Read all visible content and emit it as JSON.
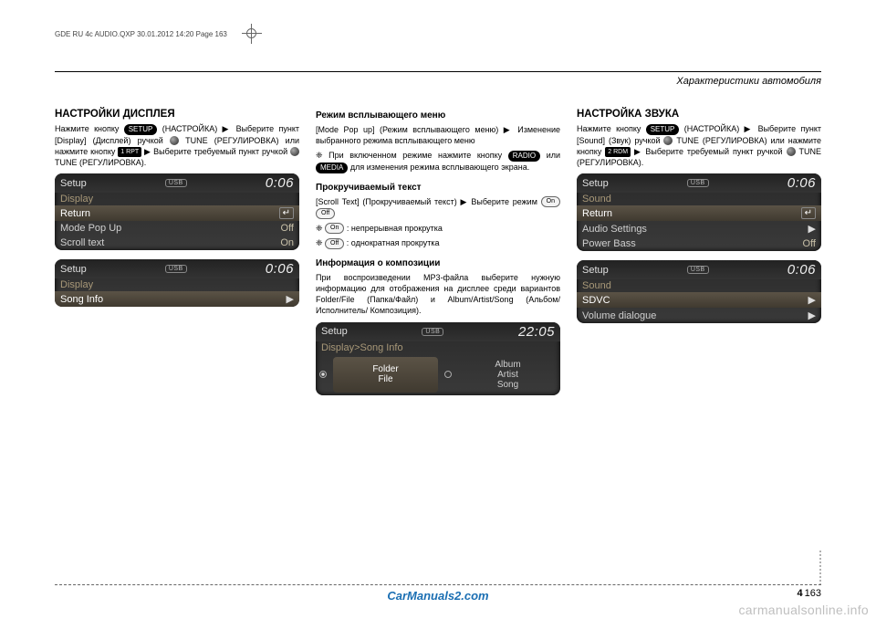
{
  "print_header": "GDE RU 4c AUDIO.QXP  30.01.2012  14:20  Page 163",
  "page_header": "Характеристики автомобиля",
  "buttons": {
    "setup": "SETUP",
    "radio": "RADIO",
    "media": "MEDIA",
    "rpt": "1 RPT",
    "rdm": "2 RDM",
    "on": "On",
    "off": "Off"
  },
  "col1": {
    "h2": "НАСТРОЙКИ ДИСПЛЕЯ",
    "p1a": "Нажмите кнопку ",
    "p1b": " (НАСТРОЙКА) ▶ Выберите пункт [Display] (Дисплей) ручкой ",
    "p1c": " TUNE (РЕГУЛИРОВКА) или нажмите кнопку ",
    "p1d": " ▶ Выберите требуемый пункт ручкой ",
    "p1e": " TUNE (РЕГУЛИРОВКА).",
    "screen1": {
      "title": "Setup",
      "usb": "USB",
      "time": "0:06",
      "subtitle": "Display",
      "rows": [
        {
          "label": "Return",
          "val": "↵",
          "hl": true
        },
        {
          "label": "Mode Pop Up",
          "val": "Off",
          "hl": false
        },
        {
          "label": "Scroll text",
          "val": "On",
          "hl": false
        }
      ]
    },
    "screen2": {
      "title": "Setup",
      "usb": "USB",
      "time": "0:06",
      "subtitle": "Display",
      "rows": [
        {
          "label": "Song Info",
          "val": "▶",
          "hl": true
        }
      ]
    }
  },
  "col2": {
    "h3a": "Режим всплывающего меню",
    "p_a": "[Mode Pop up] (Режим всплывающего меню) ▶ Изменение выбранного режима всплывающего меню",
    "p_b1": "При включенном режиме нажмите кнопку ",
    "p_b2": " или ",
    "p_b3": " для изменения режима всплывающего экрана.",
    "h3b": "Прокручиваемый текст",
    "p_c": "[Scroll Text] (Прокручиваемый текст) ▶ Выберите режим ",
    "p_d": " : непрерывная прокрутка",
    "p_e": " : однократная прокрутка",
    "h3c": "Информация о композиции",
    "p_f": "При воспроизведении MP3-файла выберите нужную информацию для отображения на дисплее среди вариантов Folder/File (Папка/Файл) и Album/Artist/Song (Альбом/Исполнитель/ Композиция).",
    "screen3": {
      "title": "Setup",
      "usb": "USB",
      "time": "22:05",
      "subtitle": "Display>Song Info",
      "left": "Folder\nFile",
      "right": "Album\nArtist\nSong"
    }
  },
  "col3": {
    "h2": "НАСТРОЙКА ЗВУКА",
    "p1a": "Нажмите кнопку ",
    "p1b": " (НАСТРОЙКА) ▶ Выберите пункт [Sound] (Звук) ручкой ",
    "p1c": " TUNE (РЕГУЛИРОВКА) или нажмите кнопку ",
    "p1d": " ▶ Выберите требуемый пункт ручкой ",
    "p1e": " TUNE (РЕГУЛИРОВКА).",
    "screen4": {
      "title": "Setup",
      "usb": "USB",
      "time": "0:06",
      "subtitle": "Sound",
      "rows": [
        {
          "label": "Return",
          "val": "↵",
          "hl": true
        },
        {
          "label": "Audio Settings",
          "val": "▶",
          "hl": false
        },
        {
          "label": "Power Bass",
          "val": "Off",
          "hl": false
        }
      ]
    },
    "screen5": {
      "title": "Setup",
      "usb": "USB",
      "time": "0:06",
      "subtitle": "Sound",
      "rows": [
        {
          "label": "SDVC",
          "val": "▶",
          "hl": true
        },
        {
          "label": "Volume dialogue",
          "val": "▶",
          "hl": false
        }
      ]
    }
  },
  "footer": {
    "watermark": "CarManuals2.com",
    "chapter": "4",
    "page": "163"
  },
  "bottom_watermark": "carmanualsonline.info"
}
